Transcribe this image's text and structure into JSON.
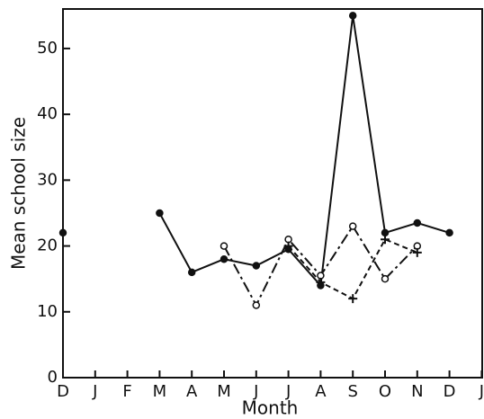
{
  "chart_data": {
    "type": "line",
    "xlabel": "Month",
    "ylabel": "Mean school size",
    "categories": [
      "D",
      "J",
      "F",
      "M",
      "A",
      "M",
      "J",
      "J",
      "A",
      "S",
      "O",
      "N",
      "D",
      "J"
    ],
    "ylim": [
      0,
      56
    ],
    "yticks": [
      0,
      10,
      20,
      30,
      40,
      50
    ],
    "series": [
      {
        "color": "#111111",
        "dash": "solid",
        "marker": "filled-circle",
        "values": [
          22,
          null,
          null,
          25,
          16,
          18,
          17,
          19.5,
          14,
          55,
          22,
          23.5,
          22,
          null
        ]
      },
      {
        "color": "#111111",
        "dash": "dashdot",
        "marker": "open-circle",
        "values": [
          null,
          null,
          null,
          null,
          null,
          20,
          11,
          21,
          15.5,
          23,
          15,
          20,
          null,
          null
        ]
      },
      {
        "color": "#111111",
        "dash": "dashed",
        "marker": "plus",
        "values": [
          null,
          null,
          null,
          null,
          null,
          null,
          null,
          20,
          14.5,
          12,
          21,
          19,
          null,
          null
        ]
      }
    ]
  }
}
